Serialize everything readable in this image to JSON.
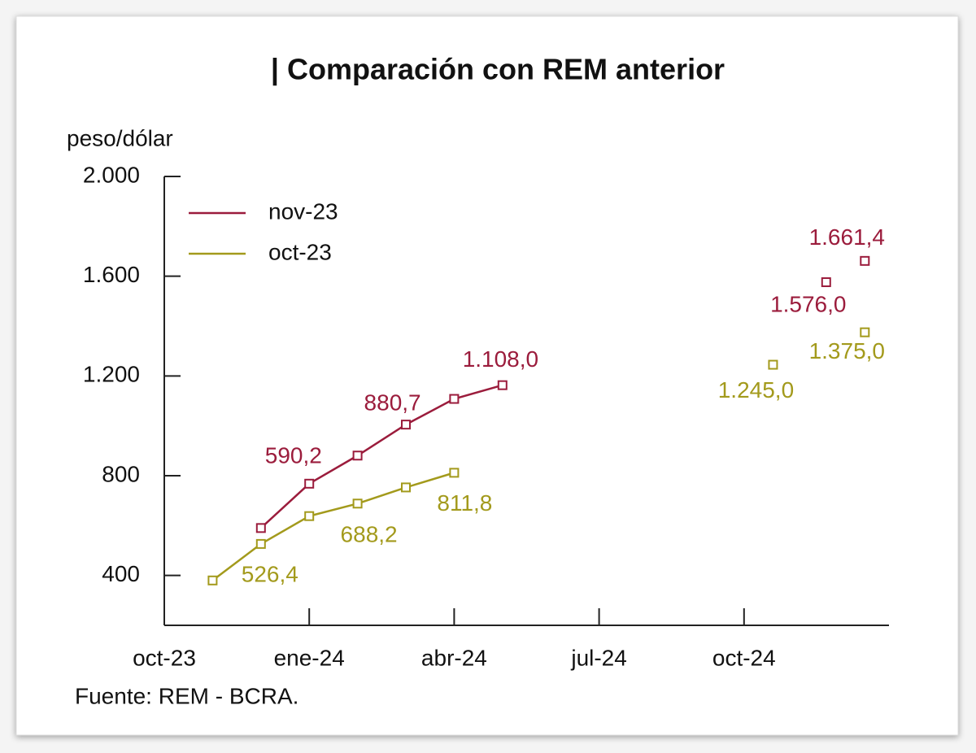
{
  "chart_data": {
    "type": "line",
    "title": "| Comparación con REM anterior",
    "y_label": "peso/dólar",
    "source": "Fuente: REM - BCRA.",
    "xlim": [
      0,
      15
    ],
    "xticks": [
      {
        "value": 0,
        "label": "oct-23"
      },
      {
        "value": 3,
        "label": "ene-24"
      },
      {
        "value": 6,
        "label": "abr-24"
      },
      {
        "value": 9,
        "label": "jul-24"
      },
      {
        "value": 12,
        "label": "oct-24"
      }
    ],
    "ylim": [
      200,
      2000
    ],
    "yticks": [
      400,
      800,
      {
        "value": 1200,
        "label": "1.200"
      },
      {
        "value": 1600,
        "label": "1.600"
      },
      {
        "value": 2000,
        "label": "2.000"
      }
    ],
    "legend": "upper left",
    "series": [
      {
        "name": "nov-23",
        "color": "#9b1c3c",
        "x": [
          2,
          3,
          4,
          5,
          6,
          7,
          null,
          13.7,
          null,
          14.5
        ],
        "values": [
          590.2,
          768,
          880.7,
          1005,
          1108,
          1163,
          null,
          1576,
          null,
          1661.4
        ],
        "value_labels": [
          "590,2",
          null,
          "880,7",
          null,
          "1.108,0",
          null,
          null,
          "1.576,0",
          null,
          "1.661,4"
        ]
      },
      {
        "name": "oct-23",
        "color": "#a39a1c",
        "x": [
          1,
          2,
          3,
          4,
          5,
          6,
          null,
          12.6,
          null,
          14.5
        ],
        "values": [
          380,
          526.4,
          638,
          688.2,
          753,
          811.8,
          null,
          1245,
          null,
          1375
        ],
        "value_labels": [
          null,
          "526,4",
          null,
          "688,2",
          null,
          "811,8",
          null,
          "1.245,0",
          null,
          "1.375,0"
        ]
      }
    ]
  }
}
